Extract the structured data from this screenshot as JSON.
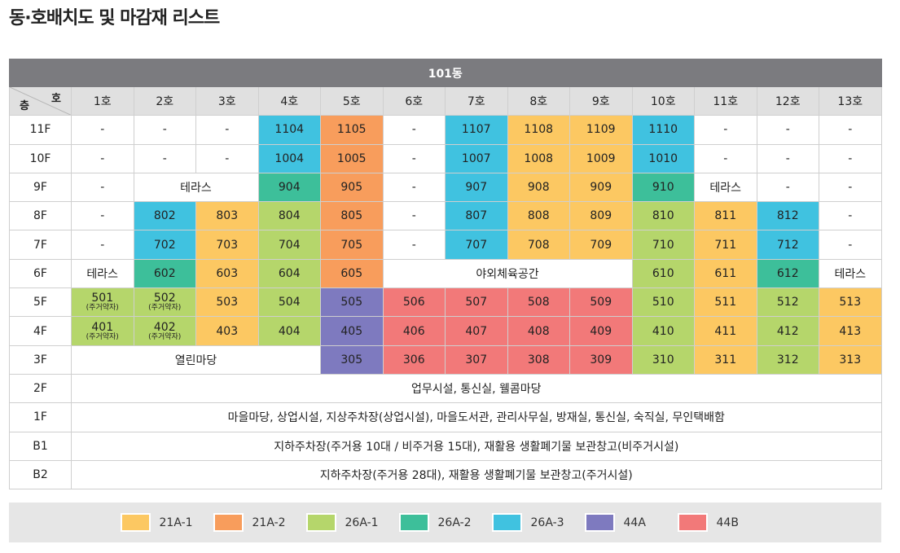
{
  "title": "동·호배치도 및 마감재 리스트",
  "building": "101동",
  "corner": {
    "ho": "호",
    "floor": "층"
  },
  "colors": {
    "21A-1": "#fcc862",
    "21A-2": "#f89d5c",
    "26A-1": "#b5d66b",
    "26A-2": "#3dbf9a",
    "26A-3": "#40c2e0",
    "44A": "#7e7abf",
    "44B": "#f27979"
  },
  "columns": [
    "1호",
    "2호",
    "3호",
    "4호",
    "5호",
    "6호",
    "7호",
    "8호",
    "9호",
    "10호",
    "11호",
    "12호",
    "13호"
  ],
  "rows": [
    {
      "floor": "11F",
      "cells": [
        {
          "t": "dash",
          "text": "-"
        },
        {
          "t": "dash",
          "text": "-"
        },
        {
          "t": "dash",
          "text": "-"
        },
        {
          "t": "unit",
          "text": "1104",
          "type": "26A-3"
        },
        {
          "t": "unit",
          "text": "1105",
          "type": "21A-2"
        },
        {
          "t": "dash",
          "text": "-"
        },
        {
          "t": "unit",
          "text": "1107",
          "type": "26A-3"
        },
        {
          "t": "unit",
          "text": "1108",
          "type": "21A-1"
        },
        {
          "t": "unit",
          "text": "1109",
          "type": "21A-1"
        },
        {
          "t": "unit",
          "text": "1110",
          "type": "26A-3"
        },
        {
          "t": "dash",
          "text": "-"
        },
        {
          "t": "dash",
          "text": "-"
        },
        {
          "t": "dash",
          "text": "-"
        }
      ]
    },
    {
      "floor": "10F",
      "cells": [
        {
          "t": "dash",
          "text": "-"
        },
        {
          "t": "dash",
          "text": "-"
        },
        {
          "t": "dash",
          "text": "-"
        },
        {
          "t": "unit",
          "text": "1004",
          "type": "26A-3"
        },
        {
          "t": "unit",
          "text": "1005",
          "type": "21A-2"
        },
        {
          "t": "dash",
          "text": "-"
        },
        {
          "t": "unit",
          "text": "1007",
          "type": "26A-3"
        },
        {
          "t": "unit",
          "text": "1008",
          "type": "21A-1"
        },
        {
          "t": "unit",
          "text": "1009",
          "type": "21A-1"
        },
        {
          "t": "unit",
          "text": "1010",
          "type": "26A-3"
        },
        {
          "t": "dash",
          "text": "-"
        },
        {
          "t": "dash",
          "text": "-"
        },
        {
          "t": "dash",
          "text": "-"
        }
      ]
    },
    {
      "floor": "9F",
      "cells": [
        {
          "t": "dash",
          "text": "-"
        },
        {
          "t": "text",
          "text": "테라스",
          "span": 2
        },
        {
          "t": "unit",
          "text": "904",
          "type": "26A-2"
        },
        {
          "t": "unit",
          "text": "905",
          "type": "21A-2"
        },
        {
          "t": "dash",
          "text": "-"
        },
        {
          "t": "unit",
          "text": "907",
          "type": "26A-3"
        },
        {
          "t": "unit",
          "text": "908",
          "type": "21A-1"
        },
        {
          "t": "unit",
          "text": "909",
          "type": "21A-1"
        },
        {
          "t": "unit",
          "text": "910",
          "type": "26A-2"
        },
        {
          "t": "text",
          "text": "테라스"
        },
        {
          "t": "dash",
          "text": "-"
        },
        {
          "t": "dash",
          "text": "-"
        }
      ]
    },
    {
      "floor": "8F",
      "cells": [
        {
          "t": "dash",
          "text": "-"
        },
        {
          "t": "unit",
          "text": "802",
          "type": "26A-3"
        },
        {
          "t": "unit",
          "text": "803",
          "type": "21A-1"
        },
        {
          "t": "unit",
          "text": "804",
          "type": "26A-1"
        },
        {
          "t": "unit",
          "text": "805",
          "type": "21A-2"
        },
        {
          "t": "dash",
          "text": "-"
        },
        {
          "t": "unit",
          "text": "807",
          "type": "26A-3"
        },
        {
          "t": "unit",
          "text": "808",
          "type": "21A-1"
        },
        {
          "t": "unit",
          "text": "809",
          "type": "21A-1"
        },
        {
          "t": "unit",
          "text": "810",
          "type": "26A-1"
        },
        {
          "t": "unit",
          "text": "811",
          "type": "21A-1"
        },
        {
          "t": "unit",
          "text": "812",
          "type": "26A-3"
        },
        {
          "t": "dash",
          "text": "-"
        }
      ]
    },
    {
      "floor": "7F",
      "cells": [
        {
          "t": "dash",
          "text": "-"
        },
        {
          "t": "unit",
          "text": "702",
          "type": "26A-3"
        },
        {
          "t": "unit",
          "text": "703",
          "type": "21A-1"
        },
        {
          "t": "unit",
          "text": "704",
          "type": "26A-1"
        },
        {
          "t": "unit",
          "text": "705",
          "type": "21A-2"
        },
        {
          "t": "dash",
          "text": "-"
        },
        {
          "t": "unit",
          "text": "707",
          "type": "26A-3"
        },
        {
          "t": "unit",
          "text": "708",
          "type": "21A-1"
        },
        {
          "t": "unit",
          "text": "709",
          "type": "21A-1"
        },
        {
          "t": "unit",
          "text": "710",
          "type": "26A-1"
        },
        {
          "t": "unit",
          "text": "711",
          "type": "21A-1"
        },
        {
          "t": "unit",
          "text": "712",
          "type": "26A-3"
        },
        {
          "t": "dash",
          "text": "-"
        }
      ]
    },
    {
      "floor": "6F",
      "cells": [
        {
          "t": "text",
          "text": "테라스"
        },
        {
          "t": "unit",
          "text": "602",
          "type": "26A-2"
        },
        {
          "t": "unit",
          "text": "603",
          "type": "21A-1"
        },
        {
          "t": "unit",
          "text": "604",
          "type": "26A-1"
        },
        {
          "t": "unit",
          "text": "605",
          "type": "21A-2"
        },
        {
          "t": "text",
          "text": "야외체육공간",
          "span": 4
        },
        {
          "t": "unit",
          "text": "610",
          "type": "26A-1"
        },
        {
          "t": "unit",
          "text": "611",
          "type": "21A-1"
        },
        {
          "t": "unit",
          "text": "612",
          "type": "26A-2"
        },
        {
          "t": "text",
          "text": "테라스"
        }
      ]
    },
    {
      "floor": "5F",
      "cells": [
        {
          "t": "unit",
          "text": "501",
          "note": "(주거약자)",
          "type": "26A-1"
        },
        {
          "t": "unit",
          "text": "502",
          "note": "(주거약자)",
          "type": "26A-1"
        },
        {
          "t": "unit",
          "text": "503",
          "type": "21A-1"
        },
        {
          "t": "unit",
          "text": "504",
          "type": "26A-1"
        },
        {
          "t": "unit",
          "text": "505",
          "type": "44A"
        },
        {
          "t": "unit",
          "text": "506",
          "type": "44B"
        },
        {
          "t": "unit",
          "text": "507",
          "type": "44B"
        },
        {
          "t": "unit",
          "text": "508",
          "type": "44B"
        },
        {
          "t": "unit",
          "text": "509",
          "type": "44B"
        },
        {
          "t": "unit",
          "text": "510",
          "type": "26A-1"
        },
        {
          "t": "unit",
          "text": "511",
          "type": "21A-1"
        },
        {
          "t": "unit",
          "text": "512",
          "type": "26A-1"
        },
        {
          "t": "unit",
          "text": "513",
          "type": "21A-1"
        }
      ]
    },
    {
      "floor": "4F",
      "cells": [
        {
          "t": "unit",
          "text": "401",
          "note": "(주거약자)",
          "type": "26A-1"
        },
        {
          "t": "unit",
          "text": "402",
          "note": "(주거약자)",
          "type": "26A-1"
        },
        {
          "t": "unit",
          "text": "403",
          "type": "21A-1"
        },
        {
          "t": "unit",
          "text": "404",
          "type": "26A-1"
        },
        {
          "t": "unit",
          "text": "405",
          "type": "44A"
        },
        {
          "t": "unit",
          "text": "406",
          "type": "44B"
        },
        {
          "t": "unit",
          "text": "407",
          "type": "44B"
        },
        {
          "t": "unit",
          "text": "408",
          "type": "44B"
        },
        {
          "t": "unit",
          "text": "409",
          "type": "44B"
        },
        {
          "t": "unit",
          "text": "410",
          "type": "26A-1"
        },
        {
          "t": "unit",
          "text": "411",
          "type": "21A-1"
        },
        {
          "t": "unit",
          "text": "412",
          "type": "26A-1"
        },
        {
          "t": "unit",
          "text": "413",
          "type": "21A-1"
        }
      ]
    },
    {
      "floor": "3F",
      "cells": [
        {
          "t": "text",
          "text": "열린마당",
          "span": 4
        },
        {
          "t": "unit",
          "text": "305",
          "type": "44A"
        },
        {
          "t": "unit",
          "text": "306",
          "type": "44B"
        },
        {
          "t": "unit",
          "text": "307",
          "type": "44B"
        },
        {
          "t": "unit",
          "text": "308",
          "type": "44B"
        },
        {
          "t": "unit",
          "text": "309",
          "type": "44B"
        },
        {
          "t": "unit",
          "text": "310",
          "type": "26A-1"
        },
        {
          "t": "unit",
          "text": "311",
          "type": "21A-1"
        },
        {
          "t": "unit",
          "text": "312",
          "type": "26A-1"
        },
        {
          "t": "unit",
          "text": "313",
          "type": "21A-1"
        }
      ]
    },
    {
      "floor": "2F",
      "cells": [
        {
          "t": "text",
          "text": "업무시설, 통신실, 웰콤마당",
          "span": 13
        }
      ]
    },
    {
      "floor": "1F",
      "cells": [
        {
          "t": "text",
          "text": "마을마당, 상업시설, 지상주차장(상업시설), 마을도서관, 관리사무실, 방재실, 통신실, 숙직실, 무인택배함",
          "span": 13
        }
      ]
    },
    {
      "floor": "B1",
      "cells": [
        {
          "t": "text",
          "text": "지하주차장(주거용 10대 / 비주거용 15대), 재활용 생활폐기물 보관창고(비주거시설)",
          "span": 13
        }
      ]
    },
    {
      "floor": "B2",
      "cells": [
        {
          "t": "text",
          "text": "지하주차장(주거용 28대), 재활용 생활폐기물 보관창고(주거시설)",
          "span": 13
        }
      ]
    }
  ],
  "legend": [
    {
      "label": "21A-1",
      "color": "#fcc862"
    },
    {
      "label": "21A-2",
      "color": "#f89d5c"
    },
    {
      "label": "26A-1",
      "color": "#b5d66b"
    },
    {
      "label": "26A-2",
      "color": "#3dbf9a"
    },
    {
      "label": "26A-3",
      "color": "#40c2e0"
    },
    {
      "label": "44A",
      "color": "#7e7abf"
    },
    {
      "label": "44B",
      "color": "#f27979"
    }
  ]
}
